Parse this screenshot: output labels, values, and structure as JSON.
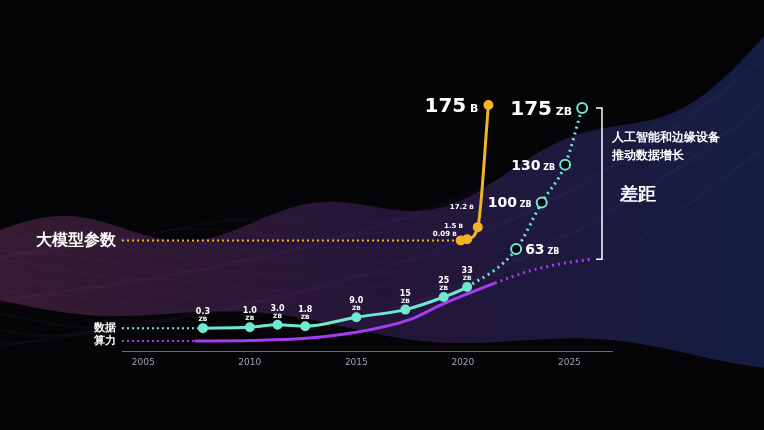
{
  "chart_data": {
    "type": "line",
    "xlim": [
      2004,
      2027
    ],
    "xticks": [
      2005,
      2010,
      2015,
      2020,
      2025
    ],
    "ylim": [
      -18,
      213
    ],
    "y2lim": [
      -143,
      233
    ],
    "tick_labels": "x",
    "grid": false,
    "data_labels": true,
    "series": [
      {
        "name": "大模型参数",
        "color": "#f2b526",
        "axis": "y2",
        "marker": "circle",
        "x": [
          2019.9,
          2020.2,
          2020.7,
          2021.2
        ],
        "values": [
          0.09,
          1.5,
          17.2,
          175
        ],
        "value_labels": [
          "0.09 B",
          "1.5 B",
          "17.2 B",
          "175 B"
        ]
      },
      {
        "name": "数据",
        "color": "#6fe8cf",
        "marker": "circle",
        "x": [
          2007.8,
          2010,
          2011.3,
          2012.6,
          2015,
          2017.3,
          2019.1,
          2020.2,
          2022.5,
          2023.7,
          2024.8,
          2025.6
        ],
        "values": [
          0.3,
          1.0,
          3.0,
          1.8,
          9.0,
          15,
          25,
          33,
          63,
          100,
          130,
          175
        ],
        "value_labels": [
          "0.3 ZB",
          "1.0 ZB",
          "3.0 ZB",
          "1.8 ZB",
          "9.0 ZB",
          "15 ZB",
          "25 ZB",
          "33 ZB",
          "63 ZB",
          "100 ZB",
          "130 ZB",
          "175 ZB"
        ]
      },
      {
        "name": "算力",
        "color": "#a63cf2",
        "marker": "none",
        "x": [
          2007.4,
          2010,
          2012.5,
          2015,
          2017.5,
          2019,
          2020,
          2021.5,
          2023,
          2024.5,
          2026
        ],
        "values": [
          -10,
          -9.5,
          -8,
          -3,
          7,
          19,
          26,
          36,
          45,
          51,
          55
        ]
      }
    ],
    "annotations": [
      "人工智能和边缘设备推动数据增长",
      "差距"
    ]
  }
}
